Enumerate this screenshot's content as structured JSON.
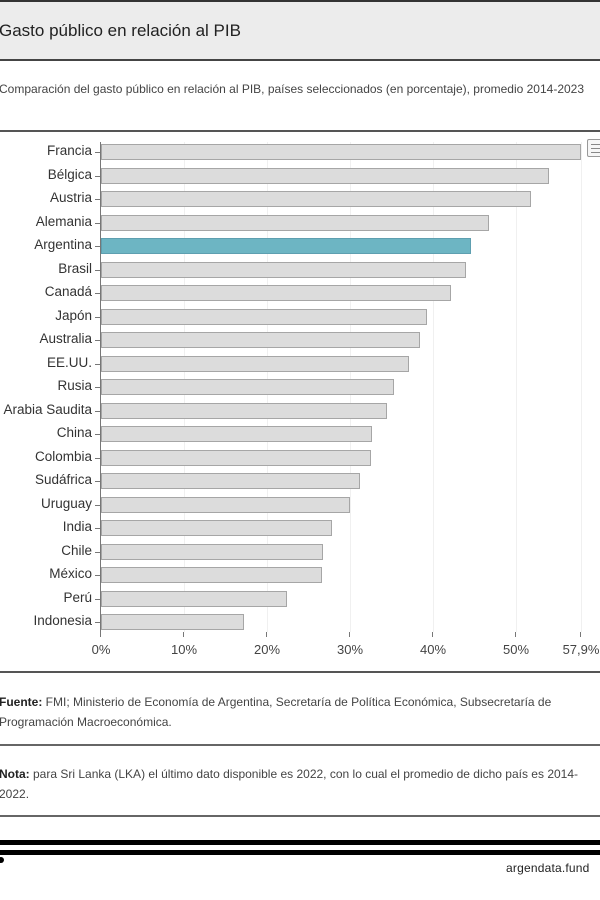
{
  "header": {
    "title": "Gasto público en relación al PIB"
  },
  "subtitle": "Comparación del gasto público en relación al PIB, países seleccionados (en porcentaje), promedio 2014-2023",
  "chart_data": {
    "type": "bar",
    "orientation": "horizontal",
    "title": "Gasto público en relación al PIB",
    "subtitle": "Comparación del gasto público en relación al PIB, países seleccionados (en porcentaje), promedio 2014-2023",
    "xlabel": "",
    "ylabel": "",
    "xlim": [
      0,
      57.9
    ],
    "x_ticks": [
      "0%",
      "10%",
      "20%",
      "30%",
      "40%",
      "50%",
      "57,9%"
    ],
    "x_tick_values": [
      0,
      10,
      20,
      30,
      40,
      50,
      57.9
    ],
    "grid": true,
    "legend": "none",
    "highlight": "Argentina",
    "colors": {
      "default": "#dcdcdc",
      "default_border": "#a6a6a6",
      "highlight": "#6db5c3"
    },
    "categories": [
      "Francia",
      "Bélgica",
      "Austria",
      "Alemania",
      "Argentina",
      "Brasil",
      "Canadá",
      "Japón",
      "Australia",
      "EE.UU.",
      "Rusia",
      "Arabia Saudita",
      "China",
      "Colombia",
      "Sudáfrica",
      "Uruguay",
      "India",
      "Chile",
      "México",
      "Perú",
      "Indonesia"
    ],
    "values": [
      57.9,
      54.0,
      51.9,
      46.8,
      44.6,
      44.0,
      42.2,
      39.3,
      38.5,
      37.2,
      35.3,
      34.5,
      32.7,
      32.6,
      31.2,
      30.0,
      27.9,
      26.8,
      26.7,
      22.4,
      17.2
    ]
  },
  "chart_menu": {
    "icon": "menu-list-icon"
  },
  "footer": {
    "source_label": "Fuente:",
    "source_text": " FMI; Ministerio de Economía de Argentina, Secretaría de Política Económica, Subsecretaría de Programación Macroeconómica.",
    "note_label": "Nota:",
    "note_text": " para Sri Lanka (LKA) el último dato disponible es 2022, con lo cual el promedio de dicho país es 2014-2022.",
    "brand": "argendata.fund"
  }
}
